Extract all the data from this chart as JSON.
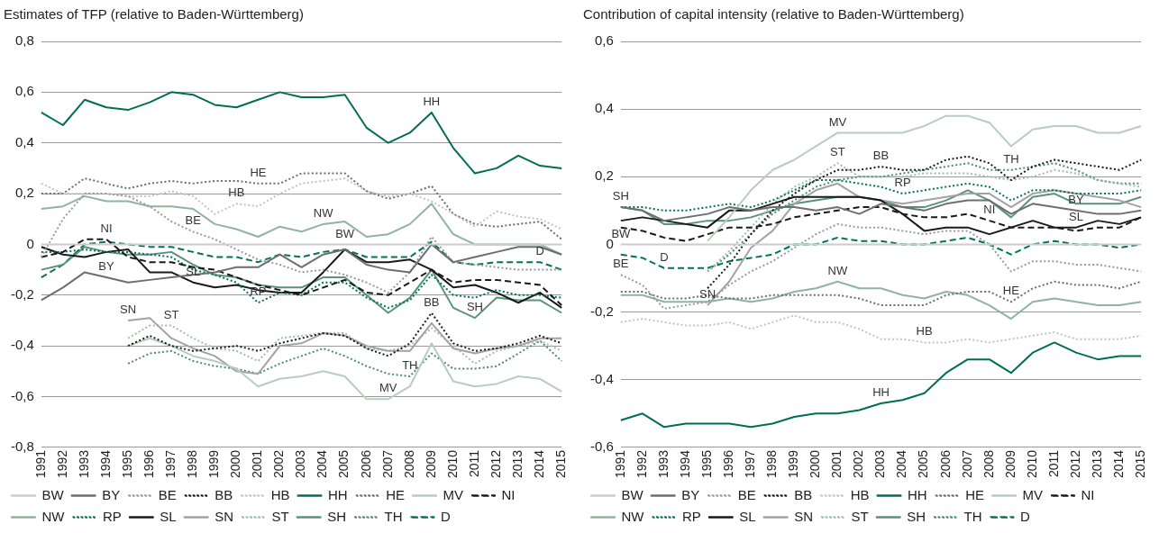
{
  "chart_data": [
    {
      "type": "line",
      "title": "Estimates of TFP (relative to Baden-Württemberg)",
      "grid": "y",
      "legend": "bottom",
      "marker": "none",
      "categories": [
        "1991",
        "1992",
        "1993",
        "1994",
        "1995",
        "1996",
        "1997",
        "1998",
        "1999",
        "2000",
        "2001",
        "2002",
        "2003",
        "2004",
        "2005",
        "2006",
        "2007",
        "2008",
        "2009",
        "2010",
        "2011",
        "2012",
        "2013",
        "2014",
        "2015"
      ],
      "ylim": [
        -0.8,
        0.8
      ],
      "yticks": [
        {
          "value": -0.8,
          "label": "-0,8"
        },
        {
          "value": -0.6,
          "label": "-0,6"
        },
        {
          "value": -0.4,
          "label": "-0,4"
        },
        {
          "value": -0.2,
          "label": "-0,2"
        },
        0,
        {
          "value": 0.2,
          "label": "0,2"
        },
        {
          "value": 0.4,
          "label": "0,4"
        },
        {
          "value": 0.6,
          "label": "0,6"
        },
        {
          "value": 0.8,
          "label": "0,8"
        }
      ],
      "series": [
        {
          "name": "BW",
          "color": "#cccccc",
          "line_style": "solid",
          "values": [
            0,
            0,
            0,
            0,
            0,
            0,
            0,
            0,
            0,
            0,
            0,
            0,
            0,
            0,
            0,
            0,
            0,
            0,
            0,
            0,
            0,
            0,
            0,
            0,
            0
          ]
        },
        {
          "name": "BY",
          "color": "#6d6e70",
          "line_style": "solid",
          "values": [
            -0.22,
            -0.17,
            -0.11,
            -0.13,
            -0.15,
            -0.14,
            -0.13,
            -0.12,
            -0.11,
            -0.09,
            -0.09,
            -0.04,
            -0.09,
            -0.04,
            -0.02,
            -0.08,
            -0.1,
            -0.11,
            0,
            -0.07,
            -0.05,
            -0.03,
            -0.01,
            -0.01,
            -0.04
          ]
        },
        {
          "name": "BE",
          "color": "#9a9a9a",
          "line_style": "dotted",
          "values": [
            -0.05,
            0.1,
            0.2,
            0.2,
            0.19,
            0.15,
            0.09,
            0.05,
            0.02,
            -0.02,
            -0.06,
            -0.08,
            -0.11,
            -0.1,
            -0.12,
            -0.15,
            -0.19,
            -0.11,
            0.03,
            -0.07,
            -0.08,
            -0.09,
            -0.1,
            -0.1,
            -0.1
          ]
        },
        {
          "name": "BB",
          "color": "#1a1a1a",
          "line_style": "dotted",
          "values": [
            null,
            null,
            null,
            null,
            -0.4,
            -0.36,
            -0.4,
            -0.42,
            -0.41,
            -0.4,
            -0.42,
            -0.39,
            -0.37,
            -0.35,
            -0.36,
            -0.41,
            -0.44,
            -0.39,
            -0.27,
            -0.39,
            -0.42,
            -0.41,
            -0.39,
            -0.36,
            -0.39
          ]
        },
        {
          "name": "HB",
          "color": "#c4c4c4",
          "line_style": "dotted",
          "values": [
            0.24,
            0.2,
            0.2,
            0.2,
            0.19,
            0.19,
            0.21,
            0.19,
            0.12,
            0.16,
            0.15,
            0.2,
            0.24,
            0.25,
            0.26,
            0.21,
            0.19,
            0.2,
            0.17,
            0.12,
            0.07,
            0.13,
            0.11,
            0.1,
            0.06
          ]
        },
        {
          "name": "HH",
          "color": "#006e55",
          "line_style": "solid",
          "values": [
            0.52,
            0.47,
            0.57,
            0.54,
            0.53,
            0.56,
            0.6,
            0.59,
            0.55,
            0.54,
            0.57,
            0.6,
            0.58,
            0.58,
            0.59,
            0.46,
            0.4,
            0.44,
            0.52,
            0.38,
            0.28,
            0.3,
            0.35,
            0.31,
            0.3
          ]
        },
        {
          "name": "HE",
          "color": "#6d6e70",
          "line_style": "dotted",
          "values": [
            0.2,
            0.2,
            0.26,
            0.24,
            0.22,
            0.24,
            0.25,
            0.24,
            0.25,
            0.25,
            0.24,
            0.24,
            0.28,
            0.28,
            0.28,
            0.21,
            0.18,
            0.2,
            0.23,
            0.12,
            0.08,
            0.07,
            0.08,
            0.09,
            0.02
          ]
        },
        {
          "name": "MV",
          "color": "#b7cdc1",
          "line_style": "solid",
          "values": [
            null,
            null,
            null,
            null,
            -0.4,
            -0.37,
            -0.4,
            -0.44,
            -0.46,
            -0.49,
            -0.56,
            -0.53,
            -0.52,
            -0.5,
            -0.52,
            -0.61,
            -0.61,
            -0.56,
            -0.39,
            -0.54,
            -0.56,
            -0.55,
            -0.52,
            -0.53,
            -0.58
          ]
        },
        {
          "name": "NI",
          "color": "#1a1a1a",
          "line_style": "dashed",
          "values": [
            -0.05,
            -0.03,
            0.02,
            0.02,
            -0.05,
            -0.07,
            -0.07,
            -0.09,
            -0.1,
            -0.13,
            -0.16,
            -0.18,
            -0.2,
            -0.17,
            -0.14,
            -0.19,
            -0.2,
            -0.15,
            -0.1,
            -0.15,
            -0.14,
            -0.14,
            -0.15,
            -0.16,
            -0.24
          ]
        },
        {
          "name": "NW",
          "color": "#8fb4a1",
          "line_style": "solid",
          "values": [
            0.14,
            0.15,
            0.19,
            0.17,
            0.17,
            0.15,
            0.15,
            0.14,
            0.08,
            0.06,
            0.03,
            0.07,
            0.05,
            0.08,
            0.09,
            0.03,
            0.04,
            0.08,
            0.16,
            0.04,
            0,
            0,
            0,
            0,
            -0.04
          ]
        },
        {
          "name": "RP",
          "color": "#00735a",
          "line_style": "dotted",
          "values": [
            -0.03,
            -0.03,
            -0.02,
            -0.03,
            -0.03,
            -0.04,
            -0.05,
            -0.1,
            -0.12,
            -0.15,
            -0.23,
            -0.19,
            -0.2,
            -0.15,
            -0.15,
            -0.21,
            -0.25,
            -0.22,
            -0.12,
            -0.2,
            -0.21,
            -0.18,
            -0.2,
            -0.2,
            -0.21
          ]
        },
        {
          "name": "SL",
          "color": "#1a1a1a",
          "line_style": "solid",
          "values": [
            -0.01,
            -0.04,
            -0.05,
            -0.03,
            -0.02,
            -0.11,
            -0.11,
            -0.15,
            -0.17,
            -0.16,
            -0.18,
            -0.19,
            -0.19,
            -0.11,
            -0.02,
            -0.07,
            -0.07,
            -0.06,
            -0.1,
            -0.17,
            -0.16,
            -0.19,
            -0.23,
            -0.19,
            -0.25
          ]
        },
        {
          "name": "SN",
          "color": "#a3a3a3",
          "line_style": "solid",
          "values": [
            null,
            null,
            null,
            null,
            -0.3,
            -0.29,
            -0.37,
            -0.41,
            -0.44,
            -0.5,
            -0.51,
            -0.4,
            -0.39,
            -0.35,
            -0.36,
            -0.4,
            -0.42,
            -0.42,
            -0.31,
            -0.41,
            -0.43,
            -0.41,
            -0.4,
            -0.37,
            -0.37
          ]
        },
        {
          "name": "ST",
          "color": "#9cbfae",
          "line_style": "dotted",
          "values": [
            null,
            null,
            null,
            null,
            -0.37,
            -0.32,
            -0.32,
            -0.37,
            -0.41,
            -0.42,
            -0.46,
            -0.37,
            -0.36,
            -0.35,
            -0.35,
            -0.41,
            -0.42,
            -0.4,
            -0.33,
            -0.4,
            -0.47,
            -0.42,
            -0.4,
            -0.38,
            -0.42
          ]
        },
        {
          "name": "SH",
          "color": "#5a9478",
          "line_style": "solid",
          "values": [
            -0.1,
            -0.08,
            -0.01,
            -0.03,
            -0.04,
            -0.04,
            -0.03,
            -0.08,
            -0.12,
            -0.13,
            -0.16,
            -0.17,
            -0.17,
            -0.13,
            -0.13,
            -0.2,
            -0.27,
            -0.21,
            -0.1,
            -0.25,
            -0.29,
            -0.21,
            -0.22,
            -0.22,
            -0.27
          ]
        },
        {
          "name": "TH",
          "color": "#4d8c70",
          "line_style": "dotted",
          "values": [
            null,
            null,
            null,
            null,
            -0.47,
            -0.43,
            -0.42,
            -0.46,
            -0.48,
            -0.49,
            -0.51,
            -0.47,
            -0.44,
            -0.41,
            -0.44,
            -0.48,
            -0.51,
            -0.52,
            -0.43,
            -0.49,
            -0.49,
            -0.48,
            -0.43,
            -0.38,
            -0.46
          ]
        },
        {
          "name": "D",
          "color": "#00735a",
          "line_style": "dashed",
          "values": [
            -0.13,
            -0.08,
            0,
            0.01,
            0,
            -0.01,
            -0.01,
            -0.03,
            -0.05,
            -0.05,
            -0.07,
            -0.04,
            -0.05,
            -0.03,
            -0.02,
            -0.05,
            -0.05,
            -0.05,
            0.01,
            -0.07,
            -0.08,
            -0.07,
            -0.07,
            -0.07,
            -0.1
          ]
        }
      ],
      "annotations": [
        {
          "text": "HH",
          "x": "2009",
          "y": 0.52
        },
        {
          "text": "HE",
          "x": "2001",
          "y": 0.24
        },
        {
          "text": "HB",
          "x": "2000",
          "y": 0.16
        },
        {
          "text": "BE",
          "x": "1998",
          "y": 0.05
        },
        {
          "text": "NI",
          "x": "1994",
          "y": 0.02
        },
        {
          "text": "NW",
          "x": "2004",
          "y": 0.08
        },
        {
          "text": "BW",
          "x": "2005",
          "y": 0
        },
        {
          "text": "D",
          "x": "2014",
          "y": -0.07
        },
        {
          "text": "BY",
          "x": "1994",
          "y": -0.13
        },
        {
          "text": "SL",
          "x": "1998",
          "y": -0.15
        },
        {
          "text": "RP",
          "x": "2001",
          "y": -0.23
        },
        {
          "text": "SN",
          "x": "1995",
          "y": -0.3
        },
        {
          "text": "ST",
          "x": "1997",
          "y": -0.32
        },
        {
          "text": "BB",
          "x": "2009",
          "y": -0.27
        },
        {
          "text": "SH",
          "x": "2011",
          "y": -0.29
        },
        {
          "text": "TH",
          "x": "2008",
          "y": -0.52
        },
        {
          "text": "MV",
          "x": "2007",
          "y": -0.61
        }
      ]
    },
    {
      "type": "line",
      "title": "Contribution of capital intensity (relative to Baden-Württemberg)",
      "grid": "y",
      "legend": "bottom",
      "marker": "none",
      "categories": [
        "1991",
        "1992",
        "1993",
        "1994",
        "1995",
        "1996",
        "1997",
        "1998",
        "1999",
        "2000",
        "2001",
        "2002",
        "2003",
        "2004",
        "2005",
        "2006",
        "2007",
        "2008",
        "2009",
        "2010",
        "2011",
        "2012",
        "2013",
        "2014",
        "2015"
      ],
      "ylim": [
        -0.6,
        0.6
      ],
      "yticks": [
        {
          "value": -0.6,
          "label": "-0,6"
        },
        {
          "value": -0.4,
          "label": "-0,4"
        },
        {
          "value": -0.2,
          "label": "-0,2"
        },
        0,
        {
          "value": 0.2,
          "label": "0,2"
        },
        {
          "value": 0.4,
          "label": "0,4"
        },
        {
          "value": 0.6,
          "label": "0,6"
        }
      ],
      "series": [
        {
          "name": "BW",
          "color": "#cccccc",
          "line_style": "solid",
          "values": [
            0,
            0,
            0,
            0,
            0,
            0,
            0,
            0,
            0,
            0,
            0,
            0,
            0,
            0,
            0,
            0,
            0,
            0,
            0,
            0,
            0,
            0,
            0,
            0,
            0
          ]
        },
        {
          "name": "BY",
          "color": "#6d6e70",
          "line_style": "solid",
          "values": [
            0.11,
            0.1,
            0.07,
            0.08,
            0.09,
            0.11,
            0.1,
            0.11,
            0.11,
            0.1,
            0.11,
            0.09,
            0.12,
            0.11,
            0.1,
            0.12,
            0.13,
            0.13,
            0.09,
            0.12,
            0.11,
            0.1,
            0.09,
            0.09,
            0.1
          ]
        },
        {
          "name": "BE",
          "color": "#9a9a9a",
          "line_style": "dotted",
          "values": [
            -0.09,
            -0.12,
            -0.19,
            -0.18,
            -0.17,
            -0.12,
            -0.08,
            -0.05,
            -0.01,
            0.03,
            0.06,
            0.05,
            0.05,
            0.04,
            0.03,
            0.04,
            0.04,
            0,
            -0.08,
            -0.05,
            -0.05,
            -0.06,
            -0.06,
            -0.07,
            -0.08
          ]
        },
        {
          "name": "BB",
          "color": "#1a1a1a",
          "line_style": "dotted",
          "values": [
            null,
            null,
            null,
            null,
            -0.13,
            -0.06,
            0.03,
            0.1,
            0.15,
            0.19,
            0.22,
            0.22,
            0.23,
            0.22,
            0.22,
            0.25,
            0.26,
            0.24,
            0.19,
            0.23,
            0.25,
            0.24,
            0.23,
            0.22,
            0.25
          ]
        },
        {
          "name": "HB",
          "color": "#c4c4c4",
          "line_style": "dotted",
          "values": [
            -0.23,
            -0.22,
            -0.23,
            -0.24,
            -0.24,
            -0.23,
            -0.25,
            -0.23,
            -0.21,
            -0.23,
            -0.23,
            -0.25,
            -0.28,
            -0.28,
            -0.29,
            -0.29,
            -0.28,
            -0.29,
            -0.28,
            -0.27,
            -0.26,
            -0.28,
            -0.28,
            -0.28,
            -0.27
          ]
        },
        {
          "name": "HH",
          "color": "#006e55",
          "line_style": "solid",
          "values": [
            -0.52,
            -0.5,
            -0.54,
            -0.53,
            -0.53,
            -0.53,
            -0.54,
            -0.53,
            -0.51,
            -0.5,
            -0.5,
            -0.49,
            -0.47,
            -0.46,
            -0.44,
            -0.38,
            -0.34,
            -0.34,
            -0.38,
            -0.32,
            -0.29,
            -0.32,
            -0.34,
            -0.33,
            -0.33
          ]
        },
        {
          "name": "HE",
          "color": "#6d6e70",
          "line_style": "dotted",
          "values": [
            -0.14,
            -0.14,
            -0.16,
            -0.16,
            -0.15,
            -0.16,
            -0.16,
            -0.15,
            -0.15,
            -0.15,
            -0.15,
            -0.16,
            -0.18,
            -0.18,
            -0.18,
            -0.15,
            -0.14,
            -0.14,
            -0.17,
            -0.13,
            -0.11,
            -0.12,
            -0.12,
            -0.13,
            -0.11
          ]
        },
        {
          "name": "MV",
          "color": "#b7cdc1",
          "line_style": "solid",
          "values": [
            null,
            null,
            null,
            null,
            0.01,
            0.08,
            0.16,
            0.22,
            0.25,
            0.29,
            0.33,
            0.33,
            0.33,
            0.33,
            0.35,
            0.38,
            0.38,
            0.36,
            0.29,
            0.34,
            0.35,
            0.35,
            0.33,
            0.33,
            0.35
          ]
        },
        {
          "name": "NI",
          "color": "#1a1a1a",
          "line_style": "dashed",
          "values": [
            0.05,
            0.04,
            0.02,
            0.01,
            0.03,
            0.05,
            0.05,
            0.06,
            0.08,
            0.09,
            0.1,
            0.11,
            0.11,
            0.09,
            0.08,
            0.08,
            0.09,
            0.07,
            0.05,
            0.05,
            0.05,
            0.04,
            0.05,
            0.05,
            0.08
          ]
        },
        {
          "name": "NW",
          "color": "#8fb4a1",
          "line_style": "solid",
          "values": [
            -0.15,
            -0.15,
            -0.17,
            -0.17,
            -0.17,
            -0.16,
            -0.17,
            -0.16,
            -0.14,
            -0.13,
            -0.11,
            -0.13,
            -0.13,
            -0.15,
            -0.16,
            -0.14,
            -0.15,
            -0.18,
            -0.22,
            -0.17,
            -0.16,
            -0.17,
            -0.18,
            -0.18,
            -0.17
          ]
        },
        {
          "name": "RP",
          "color": "#00735a",
          "line_style": "dotted",
          "values": [
            0.11,
            0.11,
            0.1,
            0.1,
            0.11,
            0.12,
            0.11,
            0.13,
            0.16,
            0.19,
            0.19,
            0.18,
            0.17,
            0.15,
            0.16,
            0.17,
            0.18,
            0.17,
            0.13,
            0.16,
            0.16,
            0.15,
            0.15,
            0.15,
            0.16
          ]
        },
        {
          "name": "SL",
          "color": "#1a1a1a",
          "line_style": "solid",
          "values": [
            0.07,
            0.08,
            0.07,
            0.06,
            0.05,
            0.1,
            0.1,
            0.12,
            0.14,
            0.14,
            0.14,
            0.14,
            0.13,
            0.09,
            0.04,
            0.05,
            0.05,
            0.03,
            0.05,
            0.07,
            0.05,
            0.05,
            0.07,
            0.06,
            0.08
          ]
        },
        {
          "name": "SN",
          "color": "#a3a3a3",
          "line_style": "solid",
          "values": [
            null,
            null,
            null,
            null,
            -0.18,
            -0.11,
            -0.01,
            0.04,
            0.12,
            0.16,
            0.18,
            0.14,
            0.13,
            0.12,
            0.13,
            0.14,
            0.15,
            0.15,
            0.11,
            0.15,
            0.16,
            0.15,
            0.14,
            0.13,
            0.11
          ]
        },
        {
          "name": "ST",
          "color": "#9cbfae",
          "line_style": "dotted",
          "values": [
            null,
            null,
            null,
            null,
            -0.08,
            -0.02,
            0.05,
            0.12,
            0.17,
            0.2,
            0.24,
            0.2,
            0.2,
            0.2,
            0.21,
            0.21,
            0.21,
            0.2,
            0.19,
            0.2,
            0.22,
            0.21,
            0.19,
            0.18,
            0.17
          ]
        },
        {
          "name": "SH",
          "color": "#5a9478",
          "line_style": "solid",
          "values": [
            0.11,
            0.1,
            0.06,
            0.06,
            0.07,
            0.07,
            0.08,
            0.1,
            0.12,
            0.13,
            0.14,
            0.14,
            0.13,
            0.11,
            0.11,
            0.13,
            0.16,
            0.13,
            0.08,
            0.14,
            0.15,
            0.12,
            0.12,
            0.12,
            0.14
          ]
        },
        {
          "name": "TH",
          "color": "#4d8c70",
          "line_style": "dotted",
          "values": [
            null,
            null,
            null,
            null,
            -0.08,
            -0.03,
            0.03,
            0.09,
            0.13,
            0.17,
            0.19,
            0.2,
            0.2,
            0.21,
            0.22,
            0.23,
            0.24,
            0.22,
            0.22,
            0.23,
            0.24,
            0.22,
            0.19,
            0.18,
            0.18
          ]
        },
        {
          "name": "D",
          "color": "#00735a",
          "line_style": "dashed",
          "values": [
            -0.03,
            -0.04,
            -0.07,
            -0.07,
            -0.07,
            -0.05,
            -0.04,
            -0.03,
            0,
            0,
            0.02,
            0.01,
            0.01,
            0,
            0,
            0.01,
            0.02,
            0,
            -0.03,
            0,
            0.01,
            0,
            0,
            -0.01,
            0
          ]
        }
      ],
      "annotations": [
        {
          "text": "MV",
          "x": "2001",
          "y": 0.33
        },
        {
          "text": "ST",
          "x": "2001",
          "y": 0.24
        },
        {
          "text": "BB",
          "x": "2003",
          "y": 0.23
        },
        {
          "text": "TH",
          "x": "2009",
          "y": 0.22
        },
        {
          "text": "RP",
          "x": "2004",
          "y": 0.15
        },
        {
          "text": "NI",
          "x": "2008",
          "y": 0.07
        },
        {
          "text": "BY",
          "x": "2012",
          "y": 0.1
        },
        {
          "text": "SL",
          "x": "2012",
          "y": 0.05
        },
        {
          "text": "SH",
          "x": "1991",
          "y": 0.11
        },
        {
          "text": "BW",
          "x": "1991",
          "y": 0
        },
        {
          "text": "BE",
          "x": "1991",
          "y": -0.09
        },
        {
          "text": "D",
          "x": "1993",
          "y": -0.07
        },
        {
          "text": "SN",
          "x": "1995",
          "y": -0.18
        },
        {
          "text": "NW",
          "x": "2001",
          "y": -0.11
        },
        {
          "text": "HE",
          "x": "2009",
          "y": -0.17
        },
        {
          "text": "HB",
          "x": "2005",
          "y": -0.29
        },
        {
          "text": "HH",
          "x": "2003",
          "y": -0.47
        }
      ]
    }
  ]
}
